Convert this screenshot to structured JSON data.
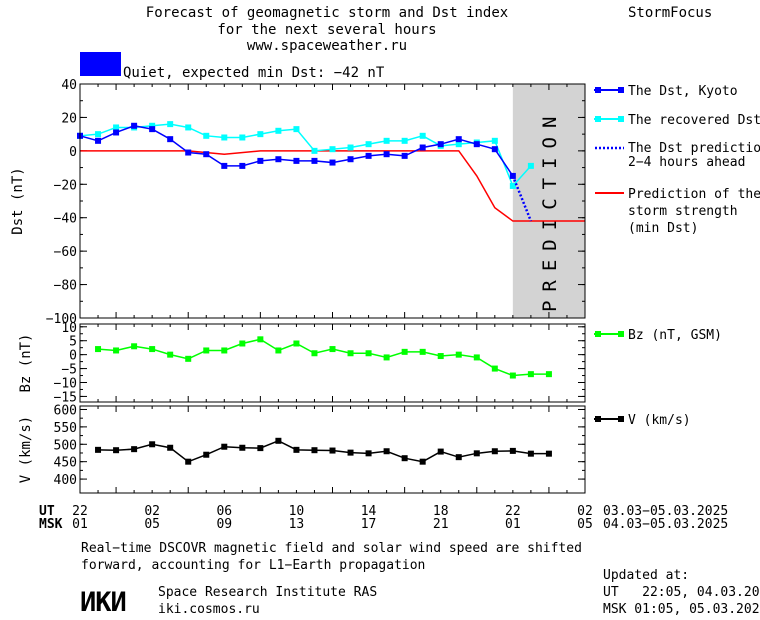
{
  "header": {
    "title_lines": [
      "Forecast of geomagnetic storm and Dst index",
      "for the next several hours",
      "www.spaceweather.ru"
    ],
    "brand": "StormFocus",
    "status_color": "#0000ff",
    "status_text": "Quiet, expected min Dst: −42 nT"
  },
  "colors": {
    "dst_kyoto": "#0000ff",
    "dst_recovered": "#00ffff",
    "dst_prediction": "#0000ff",
    "storm_prediction": "#ff0000",
    "bz": "#00ff00",
    "v": "#000000",
    "prediction_band": "#d3d3d3"
  },
  "chart_data": [
    {
      "type": "line",
      "ylabel": "Dst (nT)",
      "ylim": [
        -100,
        40
      ],
      "yticks": [
        40,
        20,
        0,
        -20,
        -40,
        -60,
        -80,
        -100
      ],
      "xlim": [
        0,
        28
      ],
      "prediction_band": {
        "x_start": 24,
        "x_end": 28,
        "label": "PREDICTION"
      },
      "series": [
        {
          "name": "The Dst, Kyoto",
          "x": [
            0,
            1,
            2,
            3,
            4,
            5,
            6,
            7,
            8,
            9,
            10,
            11,
            12,
            13,
            14,
            15,
            16,
            17,
            18,
            19,
            20,
            21,
            22,
            23,
            24
          ],
          "values": [
            9,
            6,
            11,
            15,
            13,
            7,
            -1,
            -2,
            -9,
            -9,
            -6,
            -5,
            -6,
            -6,
            -7,
            -5,
            -3,
            -2,
            -3,
            2,
            4,
            7,
            4,
            1,
            -15
          ]
        },
        {
          "name": "The recovered Dst",
          "x": [
            0,
            1,
            2,
            3,
            4,
            5,
            6,
            7,
            8,
            9,
            10,
            11,
            12,
            13,
            14,
            15,
            16,
            17,
            18,
            19,
            20,
            21,
            22,
            23,
            24,
            25
          ],
          "values": [
            9,
            10,
            14,
            14,
            15,
            16,
            14,
            9,
            8,
            8,
            10,
            12,
            13,
            0,
            1,
            2,
            4,
            6,
            6,
            9,
            3,
            4,
            5,
            6,
            -21,
            -9
          ]
        },
        {
          "name": "The Dst prediction 2–4 hours ahead",
          "x": [
            24,
            25
          ],
          "values": [
            -15,
            -42
          ]
        },
        {
          "name": "Prediction of the storm strength (min Dst)",
          "x": [
            0,
            6,
            8,
            10,
            21,
            22,
            23,
            24,
            25,
            28
          ],
          "values": [
            0,
            0,
            -2,
            0,
            0,
            -15,
            -34,
            -42,
            -42,
            -42
          ]
        }
      ]
    },
    {
      "type": "line",
      "ylabel": "Bz (nT)",
      "ylim": [
        -17,
        11
      ],
      "yticks": [
        10,
        5,
        0,
        -5,
        -10,
        -15
      ],
      "xlim": [
        0,
        28
      ],
      "series": [
        {
          "name": "Bz (nT, GSM)",
          "x": [
            1,
            2,
            3,
            4,
            5,
            6,
            7,
            8,
            9,
            10,
            11,
            12,
            13,
            14,
            15,
            16,
            17,
            18,
            19,
            20,
            21,
            22,
            23,
            24,
            25,
            26
          ],
          "values": [
            2,
            1.5,
            3,
            2,
            0,
            -1.5,
            1.5,
            1.5,
            4,
            5.5,
            1.5,
            4,
            0.5,
            2,
            0.5,
            0.5,
            -1,
            1,
            1,
            -0.5,
            0,
            -1,
            -5,
            -7.5,
            -7,
            -7
          ]
        }
      ]
    },
    {
      "type": "line",
      "ylabel": "V (km/s)",
      "ylim": [
        360,
        610
      ],
      "yticks": [
        600,
        550,
        500,
        450,
        400
      ],
      "xlim": [
        0,
        28
      ],
      "series": [
        {
          "name": "V (km/s)",
          "x": [
            1,
            2,
            3,
            4,
            5,
            6,
            7,
            8,
            9,
            10,
            11,
            12,
            13,
            14,
            15,
            16,
            17,
            18,
            19,
            20,
            21,
            22,
            23,
            24,
            25,
            26
          ],
          "values": [
            484,
            483,
            486,
            500,
            490,
            450,
            470,
            493,
            490,
            489,
            510,
            484,
            483,
            482,
            476,
            474,
            480,
            460,
            450,
            479,
            463,
            474,
            480,
            481,
            473,
            473
          ]
        }
      ]
    }
  ],
  "axis": {
    "ut_label": "UT",
    "msk_label": "MSK",
    "ut_ticks": [
      "22",
      "02",
      "06",
      "10",
      "14",
      "18",
      "22",
      "02"
    ],
    "msk_ticks": [
      "01",
      "05",
      "09",
      "13",
      "17",
      "21",
      "01",
      "05"
    ],
    "ut_dates": "03.03−05.03.2025",
    "msk_dates": "04.03−05.03.2025"
  },
  "legend": {
    "dst_kyoto": "The Dst, Kyoto",
    "dst_recovered": "The recovered Dst",
    "dst_prediction_1": "The Dst prediction",
    "dst_prediction_2": "2−4 hours ahead",
    "storm_1": "Prediction of the",
    "storm_2": "storm strength",
    "storm_3": "(min Dst)",
    "bz": "Bz (nT, GSM)",
    "v": "V (km/s)"
  },
  "footer": {
    "note_line1": "Real−time DSCOVR magnetic field and solar wind speed are shifted",
    "note_line2": "forward, accounting for L1−Earth propagation",
    "logo_text": "ИКИ",
    "institute": "Space Research Institute RAS",
    "site": "iki.cosmos.ru",
    "updated_label": "Updated at:",
    "updated_ut": "UT   22:05, 04.03.2025",
    "updated_msk": "MSK 01:05, 05.03.2025"
  }
}
